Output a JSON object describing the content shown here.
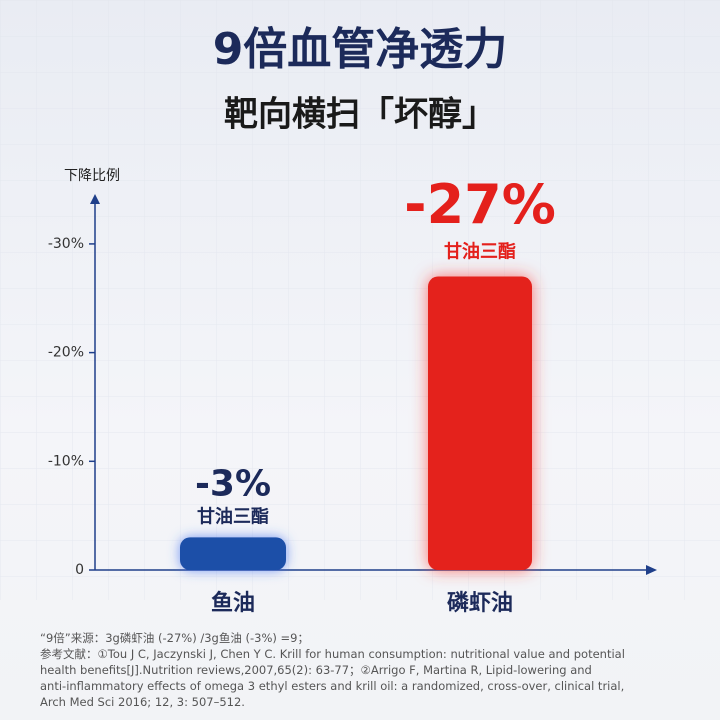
{
  "chart_data": {
    "type": "bar",
    "title": "9倍血管净透力",
    "subtitle": "靶向横扫「坏醇」",
    "y_label": "下降比例",
    "categories": [
      "鱼油",
      "磷虾油"
    ],
    "values": [
      -3,
      -27
    ],
    "value_labels": [
      "-3%",
      "-27%"
    ],
    "bar_notes": [
      "甘油三酯",
      "甘油三酯"
    ],
    "colors": [
      "#1f4fa8",
      "#e4201c"
    ],
    "ylim": [
      0,
      -34.5
    ],
    "yticks": [
      0,
      {
        "value": -10,
        "label": "-10%"
      },
      {
        "value": -20,
        "label": "-20%"
      },
      {
        "value": -30,
        "label": "-30%"
      }
    ],
    "footnotes": [
      "“9倍”来源：3g磷虾油 (-27%) /3g鱼油 (-3%) =9；",
      "参考文献：①Tou J C, Jaczynski J, Chen Y C. Krill for human consumption: nutritional value and potential",
      "health benefits[J].Nutrition reviews,2007,65(2): 63-77；②Arrigo F, Martina R, Lipid-lowering and",
      "anti-inflammatory effects of omega 3 ethyl esters and krill oil: a randomized, cross-over, clinical trial,",
      "Arch Med Sci 2016; 12, 3: 507–512."
    ]
  }
}
